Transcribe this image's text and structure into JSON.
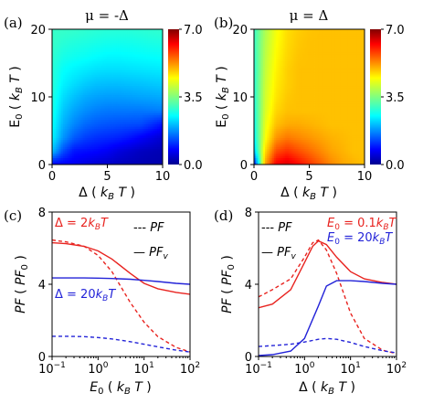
{
  "chart_data": [
    {
      "panel": "(a)",
      "type": "heatmap",
      "title": "μ = -Δ",
      "xlabel": "Δ ( k_B T )",
      "ylabel": "E_0 ( k_B T )",
      "xlim": [
        0,
        10
      ],
      "ylim": [
        0,
        20
      ],
      "x_ticks": [
        0,
        5,
        10
      ],
      "y_ticks": [
        0,
        10,
        20
      ],
      "colorbar": {
        "min": 0.0,
        "max": 7.0,
        "ticks": [
          "0.0",
          "3.5",
          "7.0"
        ],
        "colormap": "jet"
      },
      "grid": [
        [
          0.8,
          0.8,
          0.75,
          0.65,
          0.55,
          0.48,
          0.42,
          0.38,
          0.35,
          0.32,
          0.3
        ],
        [
          2.2,
          1.4,
          1.0,
          0.95,
          0.9,
          0.8,
          0.65,
          0.55,
          0.45,
          0.4,
          0.35
        ],
        [
          2.6,
          1.9,
          1.5,
          1.3,
          1.2,
          1.15,
          1.1,
          1.0,
          0.85,
          0.7,
          0.55
        ],
        [
          2.7,
          2.1,
          1.8,
          1.6,
          1.5,
          1.45,
          1.42,
          1.4,
          1.38,
          1.2,
          1.0
        ],
        [
          2.8,
          2.25,
          2.0,
          1.85,
          1.75,
          1.7,
          1.7,
          1.7,
          1.7,
          1.72,
          1.75
        ],
        [
          2.85,
          2.4,
          2.2,
          2.05,
          1.98,
          1.95,
          1.95,
          1.97,
          2.0,
          2.02,
          2.05
        ],
        [
          2.9,
          2.55,
          2.4,
          2.28,
          2.2,
          2.18,
          2.18,
          2.2,
          2.22,
          2.25,
          2.28
        ],
        [
          2.9,
          2.65,
          2.55,
          2.48,
          2.42,
          2.4,
          2.4,
          2.42,
          2.44,
          2.46,
          2.48
        ],
        [
          2.95,
          2.78,
          2.72,
          2.68,
          2.62,
          2.58,
          2.58,
          2.6,
          2.62,
          2.64,
          2.66
        ],
        [
          3.0,
          2.9,
          2.85,
          2.82,
          2.78,
          2.75,
          2.74,
          2.75,
          2.77,
          2.8,
          2.82
        ],
        [
          3.0,
          3.0,
          2.98,
          2.95,
          2.92,
          2.9,
          2.9,
          2.9,
          2.92,
          2.94,
          2.96
        ]
      ]
    },
    {
      "panel": "(b)",
      "type": "heatmap",
      "title": "μ = Δ",
      "xlabel": "Δ ( k_B T )",
      "ylabel": "E_0 ( k_B T )",
      "xlim": [
        0,
        10
      ],
      "ylim": [
        0,
        20
      ],
      "x_ticks": [
        0,
        5,
        10
      ],
      "y_ticks": [
        0,
        10,
        20
      ],
      "colorbar": {
        "min": 0.0,
        "max": 7.0,
        "ticks": [
          "0.0",
          "3.5",
          "7.0"
        ],
        "colormap": "jet"
      },
      "grid": [
        [
          0.8,
          5.0,
          6.2,
          6.4,
          6.1,
          5.8,
          5.5,
          5.2,
          5.0,
          4.9,
          4.8
        ],
        [
          2.2,
          4.6,
          5.6,
          5.8,
          5.6,
          5.4,
          5.2,
          5.0,
          4.9,
          4.8,
          4.8
        ],
        [
          2.6,
          4.3,
          5.1,
          5.3,
          5.2,
          5.1,
          5.0,
          4.9,
          4.85,
          4.8,
          4.8
        ],
        [
          2.7,
          4.2,
          4.8,
          4.95,
          4.95,
          4.9,
          4.85,
          4.8,
          4.8,
          4.8,
          4.8
        ],
        [
          2.8,
          4.1,
          4.65,
          4.8,
          4.8,
          4.8,
          4.8,
          4.8,
          4.8,
          4.8,
          4.8
        ],
        [
          2.85,
          4.05,
          4.55,
          4.75,
          4.8,
          4.8,
          4.8,
          4.8,
          4.8,
          4.8,
          4.8
        ],
        [
          2.9,
          4.0,
          4.5,
          4.7,
          4.8,
          4.8,
          4.8,
          4.8,
          4.8,
          4.8,
          4.8
        ],
        [
          2.9,
          3.95,
          4.45,
          4.7,
          4.8,
          4.8,
          4.8,
          4.8,
          4.8,
          4.8,
          4.8
        ],
        [
          2.95,
          3.9,
          4.4,
          4.65,
          4.78,
          4.8,
          4.8,
          4.8,
          4.8,
          4.8,
          4.8
        ],
        [
          3.0,
          3.85,
          4.35,
          4.62,
          4.75,
          4.8,
          4.8,
          4.8,
          4.8,
          4.8,
          4.8
        ],
        [
          3.0,
          3.8,
          4.3,
          4.6,
          4.72,
          4.78,
          4.8,
          4.8,
          4.8,
          4.8,
          4.8
        ]
      ]
    },
    {
      "panel": "(c)",
      "type": "line",
      "xlabel": "E_0 ( k_B T )",
      "ylabel": "PF ( PF_0 )",
      "xscale": "log",
      "xlim": [
        0.1,
        100
      ],
      "ylim": [
        0,
        8
      ],
      "y_ticks": [
        0,
        4,
        8
      ],
      "legend_labels": {
        "dashed": "PF",
        "solid": "PF_v"
      },
      "series": [
        {
          "label": "Δ = 2k_BT",
          "color": "#e8231f",
          "style": "solid",
          "x": [
            0.1,
            0.2,
            0.5,
            1,
            2,
            5,
            10,
            20,
            50,
            100
          ],
          "y": [
            6.3,
            6.25,
            6.1,
            5.85,
            5.4,
            4.6,
            4.05,
            3.75,
            3.55,
            3.45
          ]
        },
        {
          "label": "Δ = 2k_BT",
          "color": "#e8231f",
          "style": "dashed",
          "x": [
            0.1,
            0.2,
            0.5,
            1,
            2,
            5,
            10,
            20,
            50,
            100
          ],
          "y": [
            6.45,
            6.35,
            6.1,
            5.6,
            4.7,
            3.0,
            1.9,
            1.1,
            0.5,
            0.25
          ]
        },
        {
          "label": "Δ = 20k_BT",
          "color": "#2323d8",
          "style": "solid",
          "x": [
            0.1,
            0.2,
            0.5,
            1,
            2,
            5,
            10,
            20,
            50,
            100
          ],
          "y": [
            4.35,
            4.35,
            4.35,
            4.34,
            4.32,
            4.28,
            4.22,
            4.15,
            4.05,
            4.0
          ]
        },
        {
          "label": "Δ = 20k_BT",
          "color": "#2323d8",
          "style": "dashed",
          "x": [
            0.1,
            0.2,
            0.5,
            1,
            2,
            5,
            10,
            20,
            50,
            100
          ],
          "y": [
            1.12,
            1.12,
            1.1,
            1.05,
            0.97,
            0.82,
            0.68,
            0.53,
            0.35,
            0.25
          ]
        }
      ]
    },
    {
      "panel": "(d)",
      "type": "line",
      "xlabel": "Δ ( k_B T )",
      "ylabel": "PF ( PF_0 )",
      "xscale": "log",
      "xlim": [
        0.1,
        100
      ],
      "ylim": [
        0,
        8
      ],
      "y_ticks": [
        0,
        4,
        8
      ],
      "legend_labels": {
        "dashed": "PF",
        "solid": "PF_v"
      },
      "series": [
        {
          "label": "E_0 = 0.1k_BT",
          "color": "#e8231f",
          "style": "solid",
          "x": [
            0.1,
            0.2,
            0.5,
            1,
            1.5,
            2,
            3,
            5,
            10,
            20,
            50,
            100
          ],
          "y": [
            2.7,
            2.9,
            3.7,
            5.2,
            6.1,
            6.4,
            6.2,
            5.5,
            4.7,
            4.3,
            4.1,
            4.0
          ]
        },
        {
          "label": "E_0 = 0.1k_BT",
          "color": "#e8231f",
          "style": "dashed",
          "x": [
            0.1,
            0.2,
            0.5,
            1,
            1.5,
            2,
            3,
            5,
            10,
            20,
            50,
            100
          ],
          "y": [
            3.3,
            3.7,
            4.3,
            5.5,
            6.3,
            6.45,
            5.9,
            4.6,
            2.4,
            1.0,
            0.35,
            0.15
          ]
        },
        {
          "label": "E_0 = 20k_BT",
          "color": "#2323d8",
          "style": "solid",
          "x": [
            0.1,
            0.2,
            0.5,
            1,
            2,
            3,
            5,
            10,
            20,
            50,
            100
          ],
          "y": [
            0.05,
            0.1,
            0.3,
            1.0,
            2.8,
            3.9,
            4.2,
            4.2,
            4.15,
            4.05,
            4.0
          ]
        },
        {
          "label": "E_0 = 20k_BT",
          "color": "#2323d8",
          "style": "dashed",
          "x": [
            0.1,
            0.2,
            0.5,
            1,
            2,
            3,
            5,
            10,
            20,
            50,
            100
          ],
          "y": [
            0.55,
            0.6,
            0.68,
            0.8,
            0.95,
            1.0,
            0.95,
            0.78,
            0.55,
            0.32,
            0.2
          ]
        }
      ]
    }
  ]
}
